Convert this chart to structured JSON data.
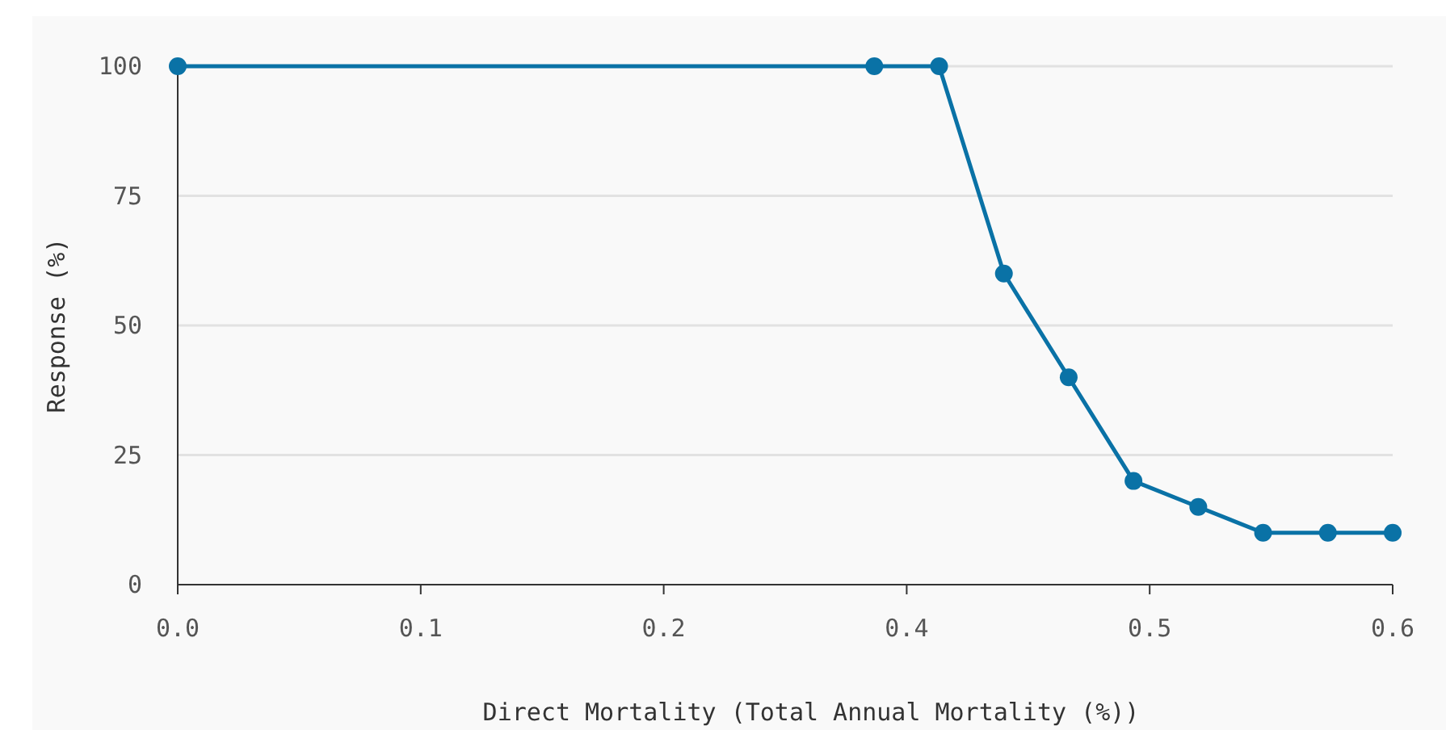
{
  "chart_data": {
    "type": "line",
    "xlabel": "Direct Mortality (Total Annual Mortality (%))",
    "ylabel": "Response (%)",
    "x": [
      0,
      0.344,
      0.376,
      0.408,
      0.44,
      0.472,
      0.504,
      0.536,
      0.568,
      0.6
    ],
    "series": [
      {
        "color": "#0a72a6",
        "values": [
          100,
          100,
          100,
          60,
          40,
          20,
          15,
          10,
          10,
          10
        ]
      }
    ],
    "xlim": [
      0,
      0.6
    ],
    "xticks": [
      {
        "value": 0,
        "label": "0.0"
      },
      {
        "value": 0.12,
        "label": "0.1"
      },
      {
        "value": 0.24,
        "label": "0.2"
      },
      {
        "value": 0.36,
        "label": "0.4"
      },
      {
        "value": 0.48,
        "label": "0.5"
      },
      {
        "value": 0.6,
        "label": "0.6"
      }
    ],
    "ylim": [
      0,
      100
    ],
    "yticks": [
      0,
      25,
      50,
      75,
      100
    ],
    "grid": "y",
    "marker": "circle",
    "line_style": "solid"
  }
}
